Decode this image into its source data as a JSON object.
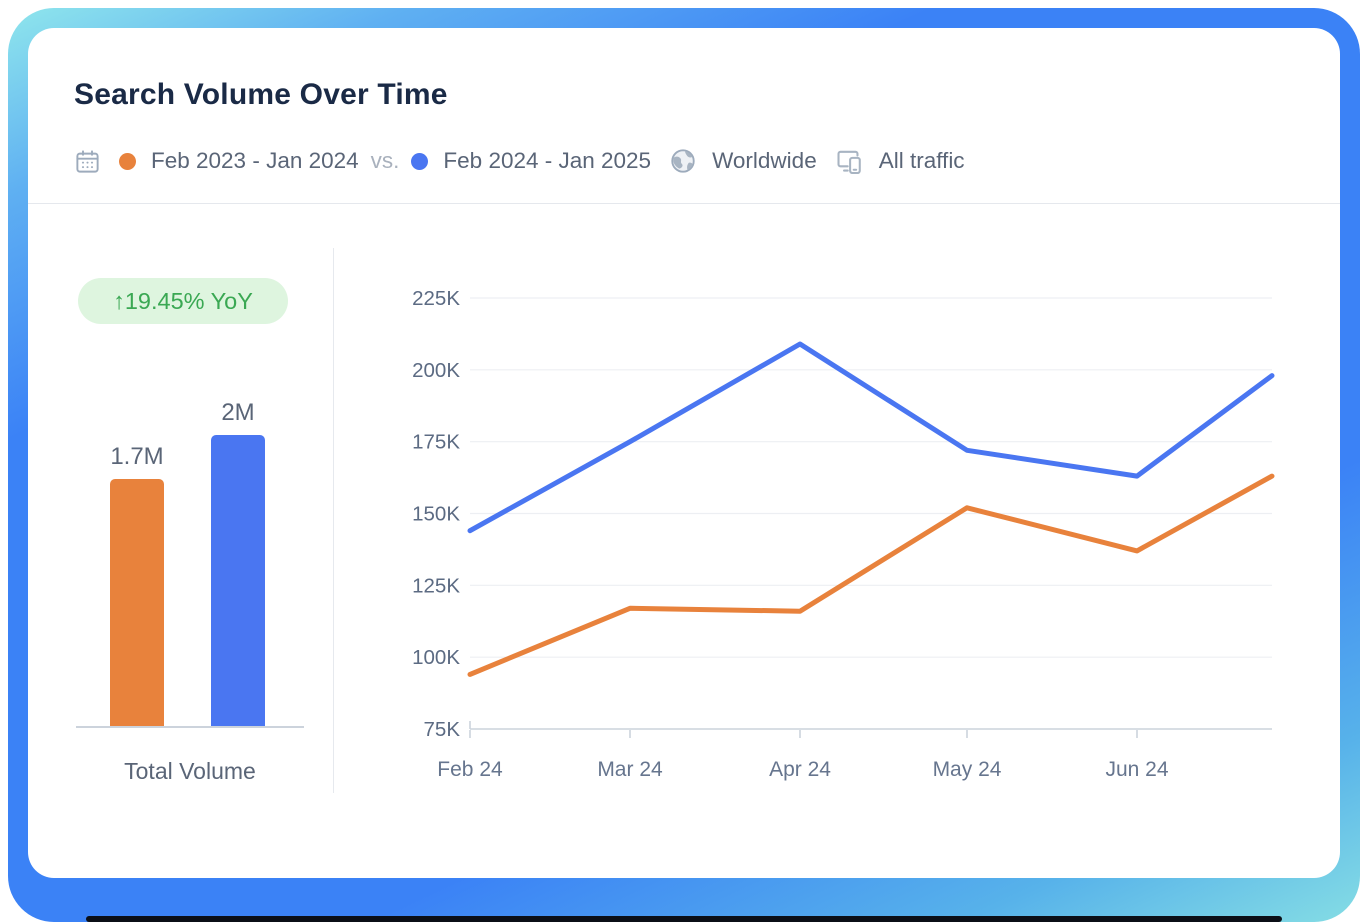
{
  "card": {
    "title": "Search Volume Over Time",
    "filters": {
      "period_a": "Feb 2023 - Jan 2024",
      "vs_label": "vs.",
      "period_b": "Feb 2024 - Jan 2025",
      "location": "Worldwide",
      "traffic": "All traffic"
    },
    "icons": {
      "calendar": "calendar-icon",
      "globe": "globe-icon",
      "devices": "devices-icon"
    },
    "colors": {
      "accent_blue": "#4a76f1",
      "accent_orange": "#e8823c",
      "badge_green_bg": "#def5df",
      "badge_green_text": "#3aa853",
      "title_navy": "#1a2a46",
      "frame_blue": "#3b82f6"
    }
  },
  "chart_data": [
    {
      "type": "line",
      "x": [
        "Feb 24",
        "Mar 24",
        "Apr 24",
        "May 24",
        "Jun 24",
        ""
      ],
      "series": [
        {
          "name": "Feb 2023 - Jan 2024",
          "color": "#e8823c",
          "values": [
            94000,
            117000,
            116000,
            152000,
            137000,
            163000
          ]
        },
        {
          "name": "Feb 2024 - Jan 2025",
          "color": "#4a76f1",
          "values": [
            144000,
            175000,
            209000,
            172000,
            163000,
            198000
          ]
        }
      ],
      "ylim": [
        75000,
        225000
      ],
      "y_ticks": [
        {
          "label": "75K",
          "value": 75000
        },
        {
          "label": "100K",
          "value": 100000
        },
        {
          "label": "125K",
          "value": 125000
        },
        {
          "label": "150K",
          "value": 150000
        },
        {
          "label": "175K",
          "value": 175000
        },
        {
          "label": "200K",
          "value": 200000
        },
        {
          "label": "225K",
          "value": 225000
        }
      ],
      "grid": "horizontal",
      "legend_position": "header"
    },
    {
      "type": "bar",
      "category": "Total Volume",
      "annotation": "↑19.45% YoY",
      "items": [
        {
          "name": "Feb 2023 - Jan 2024",
          "label": "1.7M",
          "value": 1700000,
          "color": "#e8823c"
        },
        {
          "name": "Feb 2024 - Jan 2025",
          "label": "2M",
          "value": 2000000,
          "color": "#4a76f1"
        }
      ]
    }
  ]
}
